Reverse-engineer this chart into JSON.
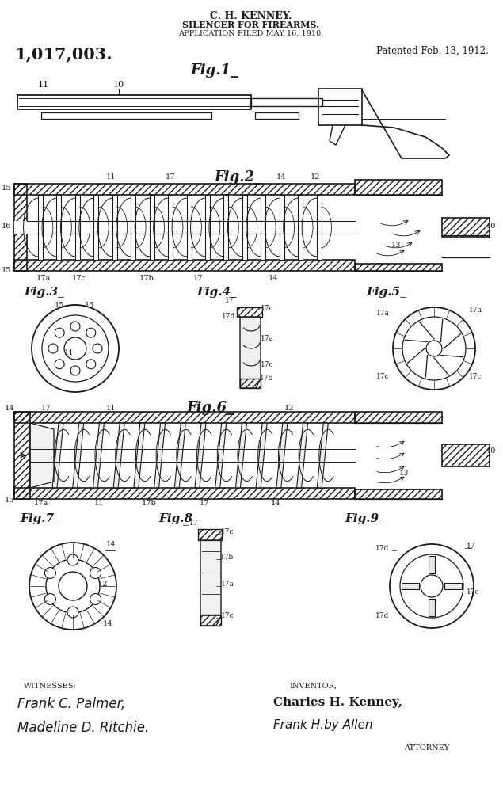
{
  "title_line1": "C. H. KENNEY.",
  "title_line2": "SILENCER FOR FIREARMS.",
  "title_line3": "APPLICATION FILED MAY 16, 1910.",
  "patent_number": "1,017,003.",
  "patent_date": "Patented Feb. 13, 1912.",
  "bg_color": "#ffffff",
  "ink_color": "#1a1a1a",
  "witnesses_label": "WITNESSES:",
  "witness1": "Frank C. Palmer,",
  "witness2": "Madeline D. Ritchie.",
  "inventor_label": "INVENTOR,",
  "inventor_name": "Charles H. Kenney,",
  "attorney_label": "ATTORNEY"
}
